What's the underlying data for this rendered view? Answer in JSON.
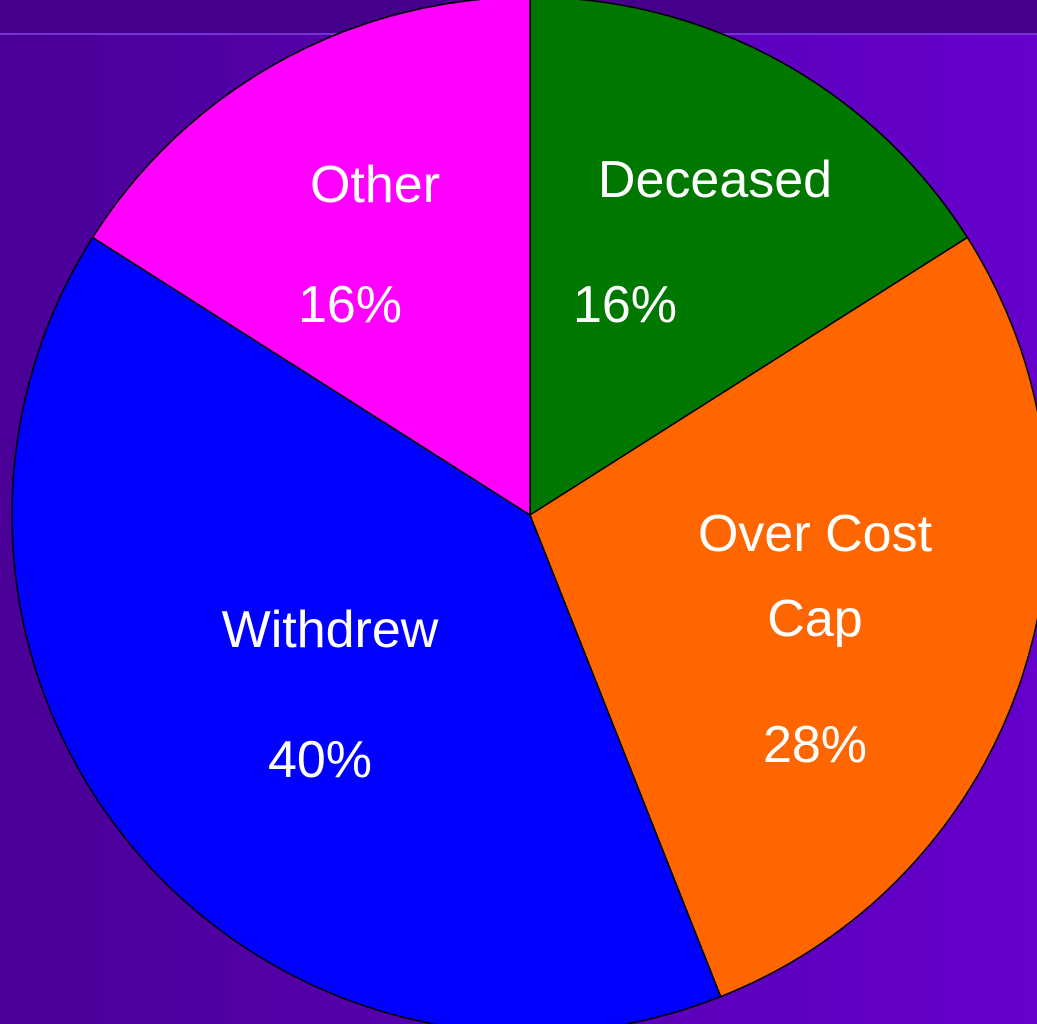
{
  "chart_data": {
    "type": "pie",
    "categories": [
      "Deceased",
      "Over Cost Cap",
      "Withdrew",
      "Other"
    ],
    "values": [
      16,
      28,
      40,
      16
    ],
    "value_labels": [
      "16%",
      "28%",
      "40%",
      "16%"
    ],
    "colors": [
      "#007800",
      "#ff6600",
      "#0000ff",
      "#ff00ff"
    ]
  }
}
